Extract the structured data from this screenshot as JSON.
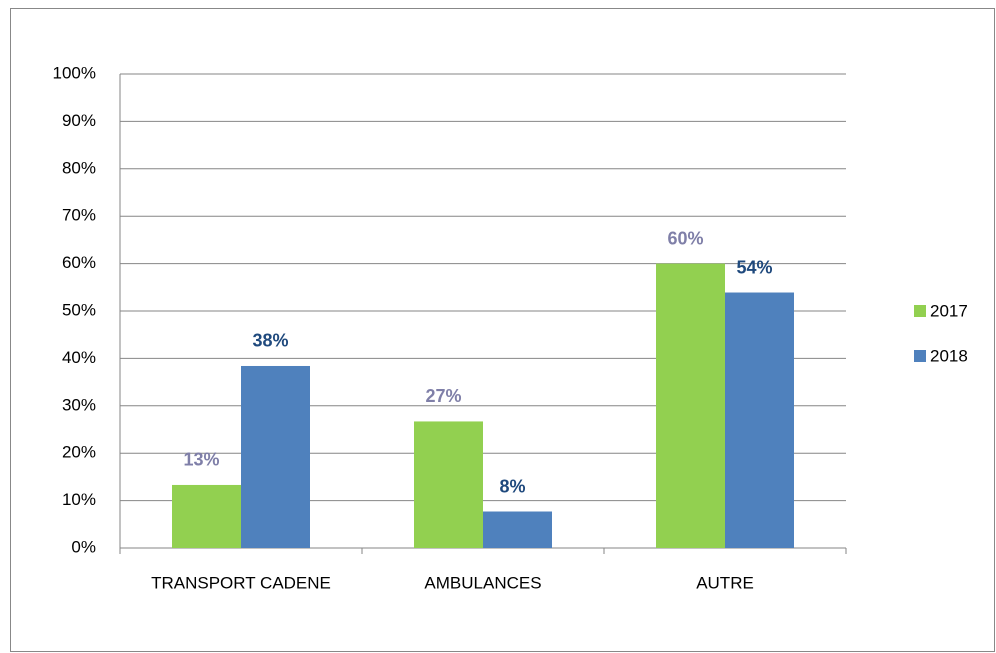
{
  "chart_data": {
    "type": "bar",
    "categories": [
      "TRANSPORT CADENE",
      "AMBULANCES",
      "AUTRE"
    ],
    "series": [
      {
        "name": "2017",
        "color": "#92d050",
        "label_color": "#7f7fa8",
        "values": [
          13.3,
          26.7,
          60
        ],
        "value_labels": [
          "13%",
          "27%",
          "60%"
        ]
      },
      {
        "name": "2018",
        "color": "#4f81bd",
        "label_color": "#1f497d",
        "values": [
          38.4,
          7.7,
          53.9
        ],
        "value_labels": [
          "38%",
          "8%",
          "54%"
        ]
      }
    ],
    "ylim": [
      0,
      100
    ],
    "yticks": [
      {
        "value": 0,
        "label": "0%"
      },
      {
        "value": 10,
        "label": "10%"
      },
      {
        "value": 20,
        "label": "20%"
      },
      {
        "value": 30,
        "label": "30%"
      },
      {
        "value": 40,
        "label": "40%"
      },
      {
        "value": 50,
        "label": "50%"
      },
      {
        "value": 60,
        "label": "60%"
      },
      {
        "value": 70,
        "label": "70%"
      },
      {
        "value": 80,
        "label": "80%"
      },
      {
        "value": 90,
        "label": "90%"
      },
      {
        "value": 100,
        "label": "100%"
      }
    ],
    "grid": true,
    "legend": "right"
  }
}
